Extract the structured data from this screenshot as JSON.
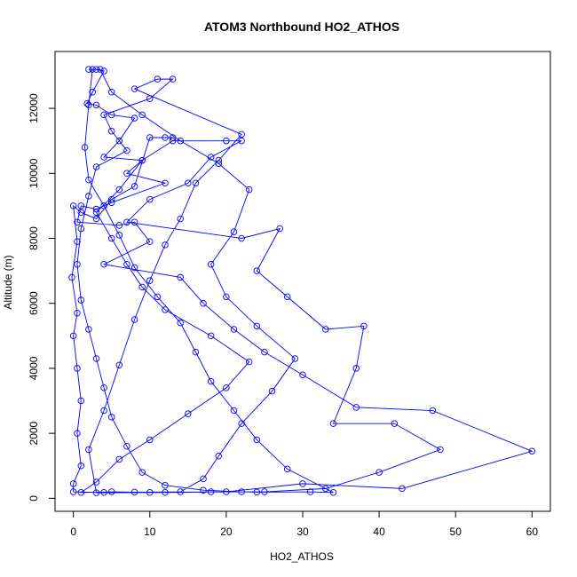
{
  "chart_data": {
    "type": "line",
    "title": "ATOM3 Northbound HO2_ATHOS",
    "xlabel": "HO2_ATHOS",
    "ylabel": "Altitude (m)",
    "color": "#0000ff",
    "x": [
      2,
      3,
      4,
      2.5,
      1.8,
      3,
      5,
      8,
      6,
      4,
      9,
      7,
      12,
      5,
      3,
      1,
      0.5,
      6,
      8,
      10,
      4,
      14,
      17,
      21,
      25,
      30,
      37,
      47,
      60,
      43,
      30,
      20,
      12,
      5,
      1,
      3,
      6,
      10,
      15,
      20,
      23,
      18,
      12,
      9,
      7,
      5,
      3,
      6,
      9,
      13,
      20,
      22,
      18,
      15,
      10,
      7,
      22,
      27,
      24,
      28,
      33,
      38,
      37,
      34,
      42,
      48,
      40,
      33,
      25,
      18,
      10,
      3,
      2,
      4,
      6,
      8,
      10,
      12,
      14,
      16,
      19,
      22,
      8,
      11,
      13,
      10,
      4,
      5,
      7,
      3,
      2,
      1,
      0.5,
      1,
      2,
      3,
      4,
      5,
      7,
      9,
      12,
      17,
      22,
      24,
      31,
      34,
      28,
      24,
      21,
      18,
      16,
      14,
      11,
      8,
      6,
      4,
      2,
      1.5,
      2,
      2.5,
      3.5,
      5,
      9,
      14,
      19,
      23,
      21,
      18,
      20,
      24,
      29,
      26,
      22,
      19,
      17,
      14,
      8,
      4,
      0,
      0,
      1,
      0.5,
      1,
      0.5,
      0,
      0.5,
      -0.2,
      0.5,
      0,
      1,
      3,
      5,
      8,
      10,
      12,
      13
    ],
    "values": [
      13200,
      13200,
      13150,
      12500,
      12150,
      12100,
      11800,
      11700,
      11000,
      10500,
      10400,
      10000,
      9700,
      9100,
      8900,
      9000,
      8500,
      8400,
      8500,
      7900,
      7200,
      6800,
      6000,
      5200,
      4500,
      3800,
      2800,
      2700,
      1450,
      300,
      450,
      200,
      180,
      200,
      180,
      500,
      1200,
      1800,
      2600,
      3400,
      4200,
      5000,
      5800,
      6500,
      7200,
      8000,
      8800,
      9500,
      10400,
      11000,
      11000,
      11000,
      10500,
      9700,
      9200,
      8500,
      8000,
      8300,
      7000,
      6200,
      5200,
      5300,
      4000,
      2300,
      2300,
      1500,
      800,
      300,
      200,
      200,
      180,
      170,
      1500,
      2700,
      4100,
      5500,
      6700,
      7800,
      8600,
      9700,
      10400,
      11200,
      12600,
      12900,
      12900,
      12300,
      11800,
      11300,
      10700,
      10200,
      9300,
      8300,
      7200,
      6100,
      5200,
      4300,
      3400,
      2500,
      1600,
      800,
      400,
      250,
      200,
      190,
      200,
      180,
      900,
      1800,
      2700,
      3600,
      4500,
      5400,
      6200,
      7100,
      8100,
      9000,
      9800,
      10800,
      12100,
      13200,
      13200,
      12500,
      11800,
      11000,
      10300,
      9500,
      8200,
      7200,
      6200,
      5300,
      4300,
      3300,
      2300,
      1300,
      600,
      200,
      190,
      180,
      200,
      450,
      1000,
      2000,
      3000,
      4000,
      5000,
      5700,
      6800,
      7900,
      9000,
      8800,
      8600,
      9200,
      9600,
      11100,
      11100,
      11100
    ],
    "xlim": [
      -2.4,
      62.4
    ],
    "ylim": [
      -400,
      13750
    ],
    "xticks": [
      0,
      10,
      20,
      30,
      40,
      50,
      60
    ],
    "yticks": [
      0,
      2000,
      4000,
      6000,
      8000,
      10000,
      12000
    ]
  }
}
